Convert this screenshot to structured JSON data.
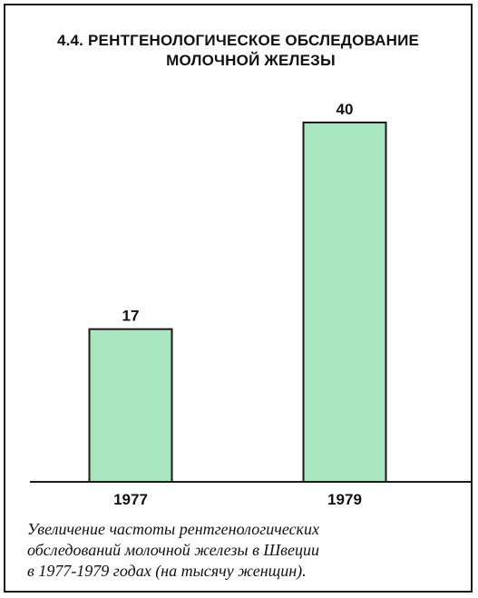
{
  "title_lines": [
    "4.4. РЕНТГЕНОЛОГИЧЕСКОЕ ОБСЛЕДОВАНИЕ",
    "МОЛОЧНОЙ ЖЕЛЕЗЫ"
  ],
  "caption_lines": [
    "Увеличение частоты рентгенологических",
    "обследований молочной железы в Швеции",
    "в 1977-1979 годах (на тысячу женщин)."
  ],
  "colors": {
    "bar_fill": "#a8e6c0",
    "bar_stroke": "#1a1a1a",
    "axis": "#1a1a1a",
    "text": "#111111"
  },
  "chart_data": {
    "type": "bar",
    "title": "4.4. РЕНТГЕНОЛОГИЧЕСКОЕ ОБСЛЕДОВАНИЕ МОЛОЧНОЙ ЖЕЛЕЗЫ",
    "categories": [
      "1977",
      "1979"
    ],
    "values": [
      17,
      40
    ],
    "data_labels": [
      "17",
      "40"
    ],
    "xlabel": "",
    "ylabel": "",
    "ylim": [
      0,
      40
    ],
    "grid": false,
    "legend": "none"
  }
}
